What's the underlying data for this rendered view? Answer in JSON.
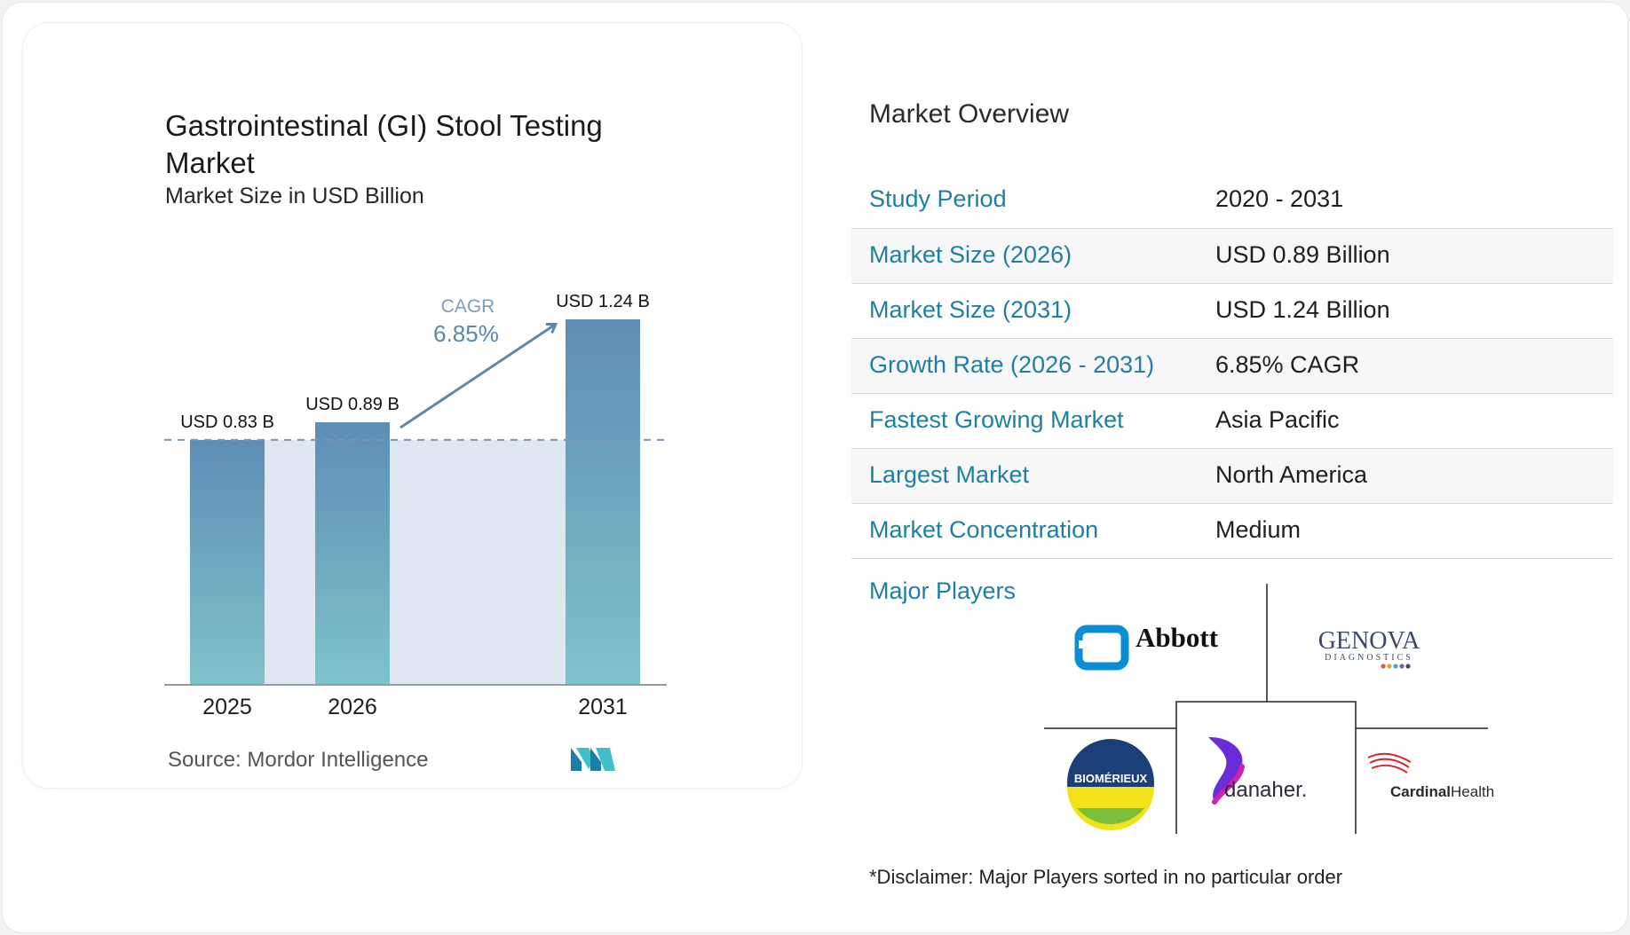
{
  "chart": {
    "title": "Gastrointestinal (GI) Stool Testing Market",
    "subtitle": "Market Size in USD Billion",
    "cagr_label": "CAGR",
    "cagr_value": "6.85%",
    "source": "Source:  Mordor Intelligence"
  },
  "chart_data": {
    "type": "bar",
    "title": "Gastrointestinal (GI) Stool Testing Market",
    "subtitle": "Market Size in USD Billion",
    "categories": [
      "2025",
      "2026",
      "2031"
    ],
    "values": [
      0.83,
      0.89,
      1.24
    ],
    "data_labels": [
      "USD 0.83 B",
      "USD 0.89 B",
      "USD 1.24 B"
    ],
    "annotation": {
      "label": "CAGR",
      "value": "6.85%"
    },
    "xlabel": "",
    "ylabel": "",
    "ylim": [
      0,
      1.24
    ],
    "grid": false,
    "legend": "none",
    "colors": {
      "bar_top": "#5d8db6",
      "bar_bottom": "#7fc3c9",
      "band": "#dfe8f0",
      "arrow": "#5b87ad",
      "dashed": "#7d97ae"
    }
  },
  "overview": {
    "title": "Market Overview",
    "rows": [
      {
        "label": "Study Period",
        "value": "2020 - 2031"
      },
      {
        "label": "Market Size (2026)",
        "value": "USD 0.89 Billion"
      },
      {
        "label": "Market Size (2031)",
        "value": "USD 1.24 Billion"
      },
      {
        "label": "Growth Rate (2026 - 2031)",
        "value": "6.85% CAGR"
      },
      {
        "label": "Fastest Growing Market",
        "value": "Asia Pacific"
      },
      {
        "label": "Largest Market",
        "value": "North America"
      },
      {
        "label": "Market Concentration",
        "value": "Medium"
      }
    ]
  },
  "players": {
    "title": "Major Players",
    "logos": [
      {
        "name": "Abbott",
        "text": "Abbott",
        "icon": "abbott-logo"
      },
      {
        "name": "Genova Diagnostics",
        "text": "GENOVA",
        "subtext": "DIAGNOSTICS",
        "icon": "genova-logo"
      },
      {
        "name": "bioMérieux",
        "text": "BIOMÉRIEUX",
        "icon": "biomerieux-logo"
      },
      {
        "name": "Danaher",
        "text": "danaher.",
        "icon": "danaher-logo"
      },
      {
        "name": "Cardinal Health",
        "text_a": "Cardinal",
        "text_b": "Health",
        "icon": "cardinal-health-logo"
      }
    ]
  },
  "disclaimer": "*Disclaimer: Major Players sorted in no particular order"
}
